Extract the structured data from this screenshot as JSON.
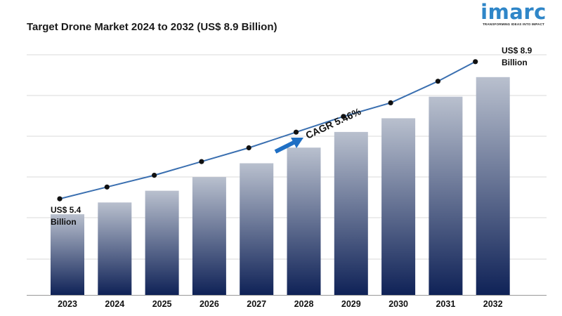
{
  "logo": {
    "word": "imarc",
    "tagline": "TRANSFORMING IDEAS INTO IMPACT"
  },
  "chart_data": {
    "type": "bar",
    "title": "Target Drone Market 2024 to 2032 (US$ 8.9 Billion)",
    "xlabel": "",
    "ylabel": "",
    "categories": [
      "2023",
      "2024",
      "2025",
      "2026",
      "2027",
      "2028",
      "2029",
      "2030",
      "2031",
      "2032"
    ],
    "values": [
      5.4,
      5.7,
      6.0,
      6.35,
      6.7,
      7.1,
      7.5,
      7.85,
      8.4,
      8.9
    ],
    "ylim": [
      3.34,
      9.47
    ],
    "grid": true,
    "trend_line": true,
    "annotations": {
      "start_label_line1": "US$ 5.4",
      "start_label_line2": "Billion",
      "end_label_line1": "US$ 8.9",
      "end_label_line2": "Billion",
      "cagr": "CAGR 5.46%"
    },
    "colors": {
      "bar_top": "#b9c0ce",
      "bar_bottom": "#0f2257",
      "line": "#3a6fb0",
      "marker": "#111111",
      "arrow": "#1f6fc4",
      "grid": "#d9d9d9",
      "axis": "#999999"
    }
  }
}
